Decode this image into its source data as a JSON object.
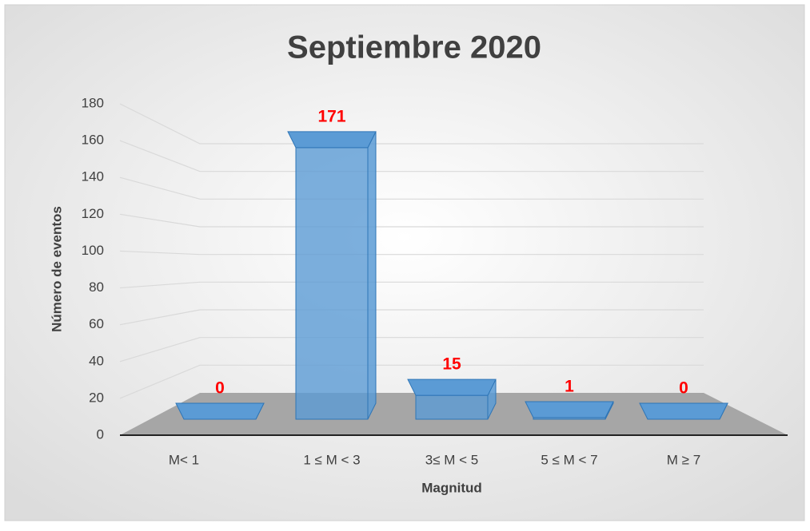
{
  "chart_data": {
    "type": "bar3d",
    "title": "Septiembre 2020",
    "x_label": "Magnitud",
    "y_label": "Número de eventos",
    "categories": [
      "M< 1",
      "1 ≤ M < 3",
      "3≤ M < 5",
      "5 ≤ M < 7",
      "M ≥ 7"
    ],
    "values": [
      0,
      171,
      15,
      1,
      0
    ],
    "color": "#5b9bd5",
    "label_color": "#ff0000",
    "ylim": [
      0,
      180
    ],
    "yticks": [
      0,
      20,
      40,
      60,
      80,
      100,
      120,
      140,
      160,
      180
    ],
    "grid": true
  }
}
